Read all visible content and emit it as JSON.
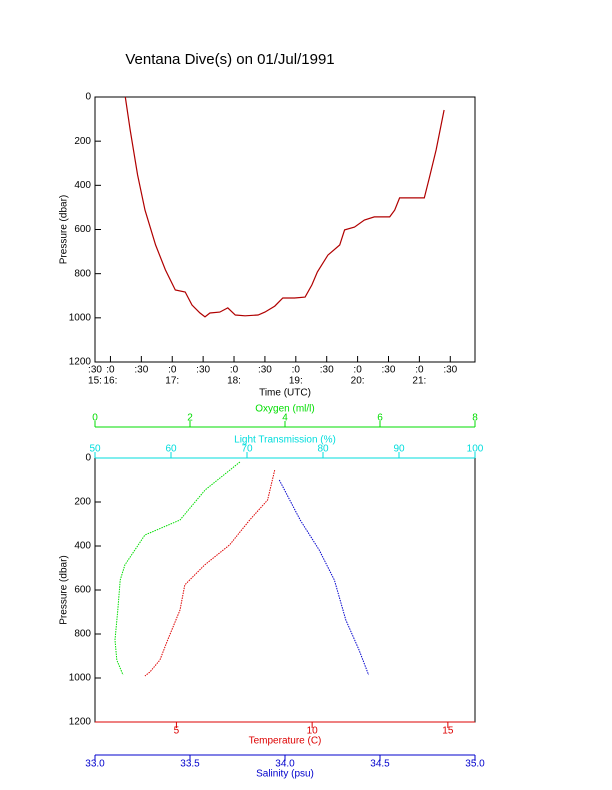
{
  "chart_data": [
    {
      "type": "line",
      "title": "Ventana Dive(s) on 01/Jul/1991",
      "xlabel": "Time (UTC)",
      "ylabel": "Pressure (dbar)",
      "xlim": [
        15.75,
        21.9
      ],
      "xticks": [
        {
          "value": 15.75,
          "label": ":30"
        },
        {
          "value": 16,
          "label": ":0"
        },
        {
          "value": 16.5,
          "label": ":30"
        },
        {
          "value": 17,
          "label": ":0"
        },
        {
          "value": 17.5,
          "label": ":30"
        },
        {
          "value": 18,
          "label": ":0"
        },
        {
          "value": 18.5,
          "label": ":30"
        },
        {
          "value": 19,
          "label": ":0"
        },
        {
          "value": 19.5,
          "label": ":30"
        },
        {
          "value": 20,
          "label": ":0"
        },
        {
          "value": 20.5,
          "label": ":30"
        },
        {
          "value": 21,
          "label": ":0"
        },
        {
          "value": 21.5,
          "label": ":30"
        }
      ],
      "xticks_hours": [
        {
          "value": 15.75,
          "label": "15:"
        },
        {
          "value": 16,
          "label": "16:"
        },
        {
          "value": 17,
          "label": "17:"
        },
        {
          "value": 18,
          "label": "18:"
        },
        {
          "value": 19,
          "label": "19:"
        },
        {
          "value": 20,
          "label": "20:"
        },
        {
          "value": 21,
          "label": "21:"
        }
      ],
      "ylim": [
        0,
        1200
      ],
      "y_inverted": true,
      "yticks": [
        0,
        200,
        400,
        600,
        800,
        1000,
        1200
      ],
      "x": [
        16.24,
        16.32,
        16.44,
        16.56,
        16.73,
        16.89,
        17.05,
        17.21,
        17.32,
        17.45,
        17.53,
        17.61,
        17.77,
        17.9,
        18.02,
        18.18,
        18.39,
        18.5,
        18.66,
        18.79,
        18.98,
        19.15,
        19.26,
        19.35,
        19.52,
        19.71,
        19.79,
        19.95,
        20.11,
        20.27,
        20.52,
        20.6,
        20.68,
        21.08,
        21.16,
        21.27,
        21.4
      ],
      "series": [
        {
          "color": "#b00000",
          "values": [
            0,
            150,
            353,
            512,
            670,
            783,
            874,
            883,
            942,
            978,
            996,
            978,
            974,
            955,
            987,
            991,
            987,
            974,
            947,
            910,
            910,
            906,
            851,
            792,
            716,
            670,
            602,
            589,
            557,
            543,
            543,
            512,
            457,
            457,
            367,
            240,
            59
          ]
        }
      ]
    },
    {
      "type": "profile",
      "ylabel": "Pressure (dbar)",
      "ylim": [
        0,
        1200
      ],
      "y_inverted": true,
      "yticks": [
        0,
        200,
        400,
        600,
        800,
        1000,
        1200
      ],
      "x_axes": [
        {
          "label": "Oxygen (ml/l)",
          "color": "#00dd00",
          "side": "top",
          "xlim": [
            0,
            8
          ],
          "xticks": [
            0,
            2,
            4,
            6,
            8
          ]
        },
        {
          "label": "Light Transmission (%)",
          "color": "#00dddd",
          "side": "top",
          "xlim": [
            50,
            100
          ],
          "xticks": [
            50,
            60,
            70,
            80,
            90,
            100
          ]
        },
        {
          "label": "Temperature (C)",
          "color": "#dd0000",
          "side": "bottom",
          "xlim": [
            2,
            16
          ],
          "xticks": [
            5,
            10,
            15
          ]
        },
        {
          "label": "Salinity (psu)",
          "color": "#0000cc",
          "side": "bottom",
          "xlim": [
            33,
            35
          ],
          "xticks": [
            {
              "value": 33,
              "label": "33.0"
            },
            {
              "value": 33.5,
              "label": "33.5"
            },
            {
              "value": 34,
              "label": "34.0"
            },
            {
              "value": 34.5,
              "label": "34.5"
            },
            {
              "value": 35,
              "label": "35.0"
            }
          ]
        }
      ],
      "series": [
        {
          "axis": 0,
          "color": "#00dd00",
          "x": [
            3.05,
            2.32,
            1.79,
            1.05,
            0.63,
            0.53,
            0.48,
            0.42,
            0.46,
            0.59
          ],
          "values": [
            18,
            145,
            282,
            350,
            486,
            555,
            691,
            827,
            918,
            986
          ]
        },
        {
          "axis": 2,
          "color": "#dd0000",
          "x": [
            8.62,
            8.36,
            7.7,
            6.96,
            6.04,
            5.31,
            5.13,
            4.68,
            4.39,
            4.02,
            3.84
          ],
          "values": [
            55,
            191,
            282,
            395,
            486,
            577,
            691,
            827,
            918,
            973,
            991
          ]
        },
        {
          "axis": 3,
          "color": "#0000cc",
          "x": [
            33.97,
            34.08,
            34.18,
            34.26,
            34.32,
            34.39,
            34.44
          ],
          "values": [
            100,
            282,
            418,
            555,
            736,
            873,
            986
          ]
        }
      ]
    }
  ]
}
